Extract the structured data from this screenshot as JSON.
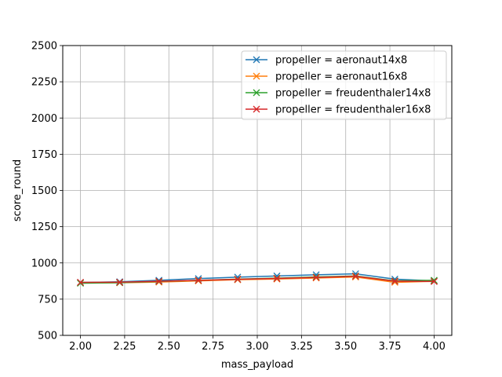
{
  "chart_data": {
    "type": "line",
    "xlabel": "mass_payload",
    "ylabel": "score_round",
    "xlim": [
      1.9,
      4.1
    ],
    "ylim": [
      500,
      2500
    ],
    "xticks": [
      2.0,
      2.25,
      2.5,
      2.75,
      3.0,
      3.25,
      3.5,
      3.75,
      4.0
    ],
    "xtick_labels": [
      "2.00",
      "2.25",
      "2.50",
      "2.75",
      "3.00",
      "3.25",
      "3.50",
      "3.75",
      "4.00"
    ],
    "yticks": [
      500,
      750,
      1000,
      1250,
      1500,
      1750,
      2000,
      2250,
      2500
    ],
    "ytick_labels": [
      "500",
      "750",
      "1000",
      "1250",
      "1500",
      "1750",
      "2000",
      "2250",
      "2500"
    ],
    "grid": true,
    "legend_position": "top-right",
    "marker": "x",
    "x": [
      2.0,
      2.222,
      2.444,
      2.667,
      2.889,
      3.111,
      3.333,
      3.556,
      3.778,
      4.0
    ],
    "series": [
      {
        "name": "propeller = aeronaut14x8",
        "color": "#1f77b4",
        "values": [
          865,
          870,
          880,
          892,
          902,
          910,
          918,
          925,
          888,
          876
        ]
      },
      {
        "name": "propeller = aeronaut16x8",
        "color": "#ff7f0e",
        "values": [
          862,
          863,
          868,
          876,
          884,
          889,
          896,
          903,
          866,
          873
        ]
      },
      {
        "name": "propeller = freudenthaler14x8",
        "color": "#2ca02c",
        "values": [
          860,
          864,
          872,
          880,
          888,
          895,
          903,
          910,
          876,
          880
        ]
      },
      {
        "name": "propeller = freudenthaler16x8",
        "color": "#d62728",
        "values": [
          866,
          867,
          873,
          880,
          887,
          893,
          900,
          908,
          874,
          872
        ]
      }
    ]
  }
}
